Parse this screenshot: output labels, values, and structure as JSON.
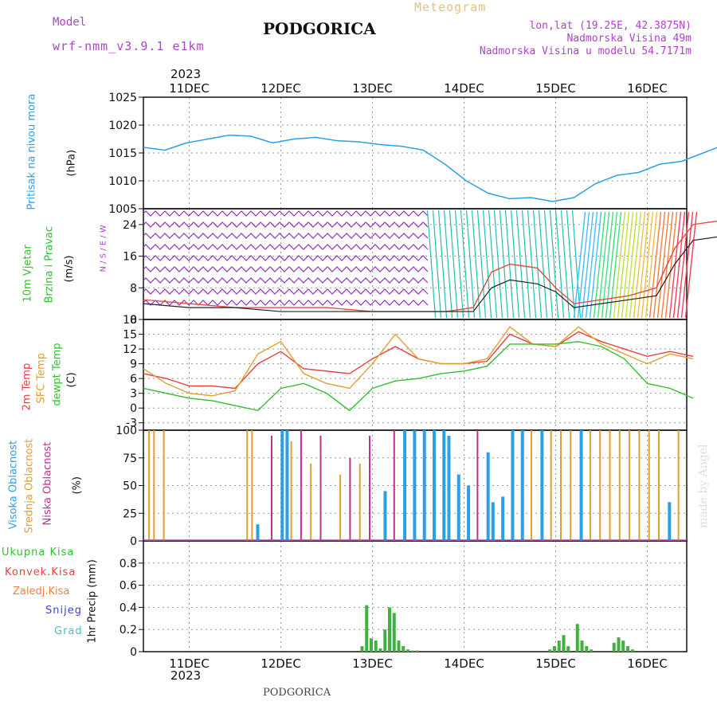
{
  "header": {
    "model_label": "Model",
    "model_name": "wrf-nmm_v3.9.1 e1km",
    "title": "PODGORICA",
    "product": "Meteogram",
    "coords": "lon,lat (19.25E, 42.3875N)",
    "elevation": "Nadmorska Visina 49m",
    "model_elevation": "Nadmorska Visina u modelu 54.7171m",
    "footer_title": "PODGORICA",
    "watermark": "made by Angel"
  },
  "colors": {
    "pressure": "#2aa0e6",
    "wind_speed_max": "#e0503a",
    "wind_speed": "#222222",
    "t2m": "#e84040",
    "tsfc": "#e0a030",
    "dewpoint": "#30c030",
    "cloud_high": "#2aa0e6",
    "cloud_mid": "#e0a030",
    "cloud_low": "#c03090",
    "precip_total": "#40b040",
    "precip_conv": "#e84040",
    "precip_grid": "#f08040",
    "snow": "#4040e0",
    "graupel": "#40c0c0",
    "axis_label_purple": "#b040d0"
  },
  "chart_data": [
    {
      "type": "line",
      "panel": "pressure",
      "ylabel_side": "Pritisak na nivou mora",
      "ylabel_unit": "(hPa)",
      "ylim": [
        1005,
        1025
      ],
      "yticks": [
        1005,
        1010,
        1015,
        1020,
        1025
      ],
      "x_days": [
        0,
        0.25,
        0.5,
        0.75,
        1.0,
        1.25,
        1.5,
        1.75,
        2.0,
        2.25,
        2.5,
        2.75,
        3.0,
        3.25,
        3.5,
        3.75,
        4.0,
        4.25,
        4.5,
        4.75,
        5.0,
        5.25,
        5.5,
        5.75,
        6.0
      ],
      "series": [
        {
          "values": [
            1016.0,
            1015.5,
            1016.8,
            1017.5,
            1018.2,
            1018.0,
            1016.8,
            1017.5,
            1017.8,
            1017.2,
            1017.0,
            1016.5,
            1016.2,
            1015.5,
            1013.0,
            1010.0,
            1007.8,
            1006.8,
            1007.0,
            1006.3,
            1007.0,
            1009.5,
            1011.0,
            1011.5,
            1013.0
          ]
        }
      ],
      "extra_x": [
        6.25,
        6.5,
        6.75,
        7.0,
        7.25,
        7.5,
        7.75
      ],
      "extra_values": [
        1013.5,
        1015.0,
        1016.5,
        1017.5,
        1018.5,
        1021.0,
        1024.3
      ],
      "grid": true
    },
    {
      "type": "line",
      "panel": "wind",
      "ylabel_side": [
        "10m Vjetar",
        "Brzina i Pravac"
      ],
      "ylabel_unit": "(m/s)",
      "ylim": [
        0,
        28
      ],
      "yticks": [
        0,
        8,
        16,
        24
      ],
      "compass": "N / S / E / W",
      "x_days": [
        0,
        0.5,
        1,
        1.5,
        2,
        2.5,
        3,
        3.3,
        3.6,
        3.8,
        4,
        4.3,
        4.5,
        4.7,
        5,
        5.3,
        5.6,
        5.8,
        6,
        6.3,
        6.6,
        6.9
      ],
      "series": [
        {
          "name": "speed",
          "values": [
            4,
            3,
            3,
            2,
            2,
            2,
            2,
            2,
            2,
            8,
            10,
            9,
            7,
            3,
            4,
            5,
            6,
            14,
            20,
            21,
            18,
            15
          ]
        },
        {
          "name": "gust",
          "values": [
            5,
            4,
            3,
            3,
            3,
            2,
            2,
            2,
            3,
            12,
            14,
            13,
            8,
            4,
            5,
            6,
            8,
            18,
            24,
            25,
            22,
            20
          ]
        }
      ],
      "grid": true
    },
    {
      "type": "line",
      "panel": "temperature",
      "ylabel_side": [
        "2m Temp",
        "SFC Temp",
        "dewpt Temp"
      ],
      "ylabel_unit": "(C)",
      "ylim": [
        -4.5,
        18
      ],
      "yticks": [
        -3,
        0,
        3,
        6,
        9,
        12,
        15,
        18
      ],
      "x_days": [
        0,
        0.25,
        0.5,
        0.75,
        1.0,
        1.25,
        1.5,
        1.75,
        2.0,
        2.25,
        2.5,
        2.75,
        3.0,
        3.25,
        3.5,
        3.75,
        4.0,
        4.25,
        4.5,
        4.75,
        5.0,
        5.25,
        5.5,
        5.75,
        6.0
      ],
      "series": [
        {
          "name": "2m Temp",
          "values": [
            7,
            6,
            4.5,
            4.5,
            4.0,
            9,
            11.5,
            8,
            7.5,
            7,
            10,
            12.5,
            10,
            9,
            9,
            9.5,
            15,
            13,
            12.5,
            15.5,
            13.5,
            12,
            10.5,
            11.5,
            10.5
          ]
        },
        {
          "name": "SFC Temp",
          "values": [
            8,
            5,
            3,
            2.5,
            3.5,
            11,
            13.5,
            7,
            5,
            4,
            9,
            15,
            10,
            9,
            9,
            10,
            16.5,
            13,
            12.5,
            16.5,
            13,
            11,
            9,
            11,
            10
          ]
        },
        {
          "name": "dewpt Temp",
          "values": [
            4,
            3,
            2,
            1.5,
            0.5,
            -0.5,
            4,
            5,
            3,
            -0.5,
            4,
            5.5,
            6,
            7,
            7.5,
            8.5,
            13,
            13,
            13,
            13.5,
            12.5,
            10,
            5,
            4,
            2
          ]
        }
      ],
      "grid": true
    },
    {
      "type": "bar",
      "panel": "clouds",
      "ylabel_side": [
        "Visoka Oblacnost",
        "Srednja Oblacnost",
        "Niska Oblacnost"
      ],
      "ylabel_unit": "(%)",
      "ylim": [
        0,
        100
      ],
      "yticks": [
        0,
        25,
        50,
        75,
        100
      ],
      "grid": true
    },
    {
      "type": "bar",
      "panel": "precip",
      "ylabel_side": [
        "Ukupna Kisa",
        "Konvek.Kisa",
        "Zaledj.Kisa",
        "Snijeg",
        "Grad"
      ],
      "ylabel_unit": "1hr Precip (mm)",
      "ylim": [
        0,
        1
      ],
      "yticks": [
        0,
        0.2,
        0.4,
        0.6,
        0.8
      ],
      "x_days": [
        2.3,
        2.35,
        2.4,
        2.45,
        2.5,
        2.55,
        2.6,
        2.65,
        2.7,
        2.75,
        2.8,
        2.85,
        2.9,
        4.35,
        4.4,
        4.45,
        4.5,
        4.55,
        4.65,
        4.7,
        4.75,
        4.8,
        5.05,
        5.1,
        5.15,
        5.2,
        5.25
      ],
      "values": [
        0.05,
        0.42,
        0.12,
        0.1,
        0.03,
        0.2,
        0.4,
        0.35,
        0.1,
        0.05,
        0.02,
        0.01,
        0.01,
        0.02,
        0.05,
        0.1,
        0.15,
        0.05,
        0.25,
        0.1,
        0.05,
        0.02,
        0.08,
        0.13,
        0.1,
        0.05,
        0.02
      ],
      "grid": true
    }
  ],
  "xaxis": {
    "year": "2023",
    "days": [
      "11DEC",
      "12DEC",
      "13DEC",
      "14DEC",
      "15DEC",
      "16DEC"
    ]
  }
}
